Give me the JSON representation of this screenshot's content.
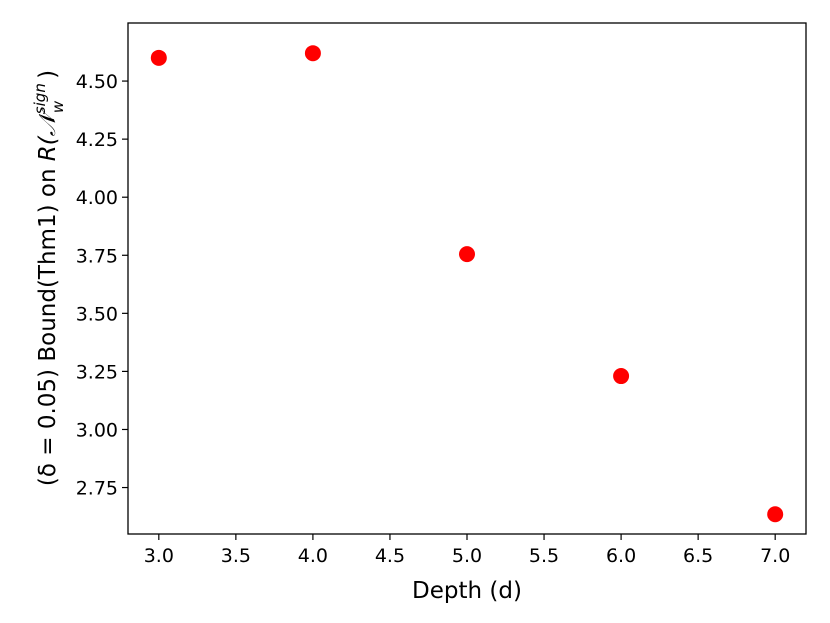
{
  "chart_data": {
    "type": "scatter",
    "title": "",
    "xlabel": "Depth (d)",
    "ylabel": {
      "prefix": "(δ = 0.05) Bound(Thm1) on ",
      "math_base": "R(𝒩",
      "superscript": "sign",
      "subscript": "w",
      "suffix": ")"
    },
    "xlim": [
      2.8,
      7.2
    ],
    "ylim": [
      2.55,
      4.75
    ],
    "x_ticks": [
      "3.0",
      "3.5",
      "4.0",
      "4.5",
      "5.0",
      "5.5",
      "6.0",
      "6.5",
      "7.0"
    ],
    "y_ticks": [
      "2.75",
      "3.00",
      "3.25",
      "3.50",
      "3.75",
      "4.00",
      "4.25",
      "4.50"
    ],
    "series": [
      {
        "color": "#ff0000",
        "points": [
          {
            "x": 3.0,
            "y": 4.6
          },
          {
            "x": 4.0,
            "y": 4.62
          },
          {
            "x": 5.0,
            "y": 3.755
          },
          {
            "x": 6.0,
            "y": 3.23
          },
          {
            "x": 7.0,
            "y": 2.635
          }
        ]
      }
    ],
    "grid": false,
    "legend": "none"
  }
}
